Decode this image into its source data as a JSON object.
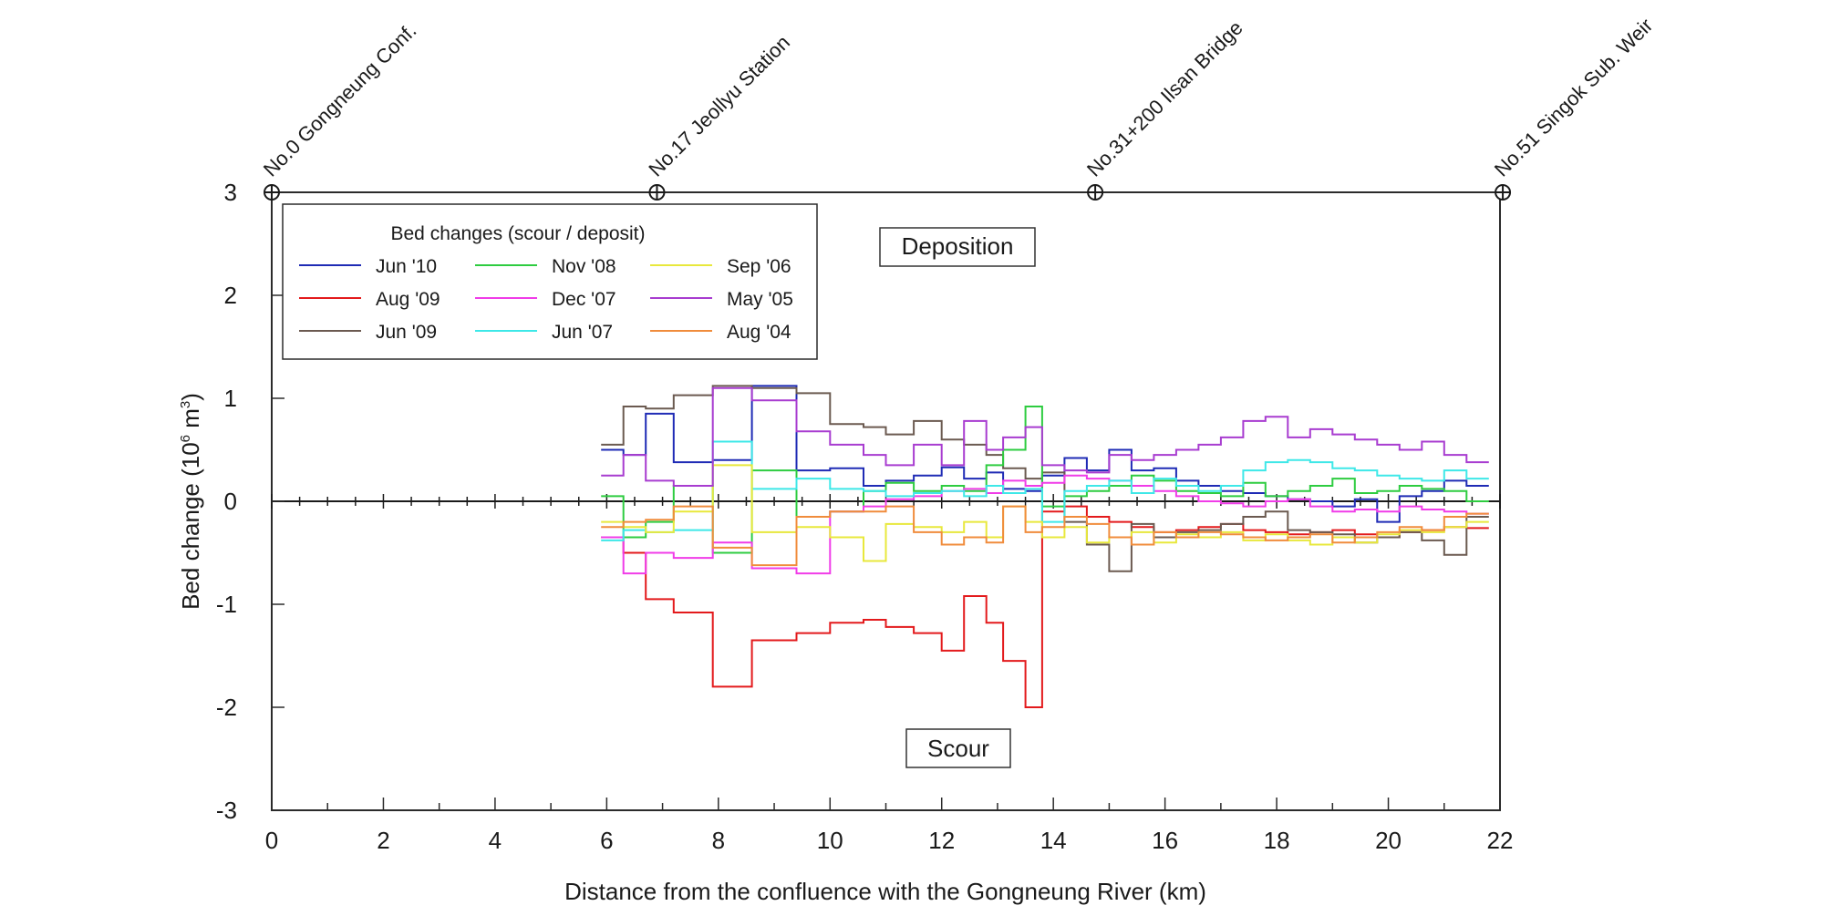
{
  "chart_data": {
    "type": "line",
    "subtype": "step",
    "title": "",
    "xlabel": "Distance from the confluence with the Gongneung River (km)",
    "ylabel_main": "Bed change (10",
    "ylabel_sup": "6",
    "ylabel_unit": " m",
    "ylabel_sup2": "3",
    "ylabel_end": ")",
    "xlim": [
      0,
      22
    ],
    "ylim": [
      -3,
      3
    ],
    "x_ticks": [
      0,
      2,
      4,
      6,
      8,
      10,
      12,
      14,
      16,
      18,
      20,
      22
    ],
    "x_tick_labels": [
      "0",
      "2",
      "4",
      "6",
      "8",
      "10",
      "12",
      "14",
      "16",
      "18",
      "20",
      "22"
    ],
    "y_ticks": [
      3,
      2,
      1,
      0,
      -1,
      -2,
      -3
    ],
    "y_tick_labels": [
      "3",
      "2",
      "1",
      "0",
      "-1",
      "-2",
      "-3"
    ],
    "stations": [
      {
        "x": 0,
        "label": "No.0 Gongneung Conf."
      },
      {
        "x": 6.9,
        "label": "No.17 Jeollyu Station"
      },
      {
        "x": 14.75,
        "label": "No.31+200 Ilsan Bridge"
      },
      {
        "x": 22.05,
        "label": "No.51 Singok Sub. Weir"
      }
    ],
    "annotations": {
      "deposition": "Deposition",
      "scour": "Scour"
    },
    "legend": {
      "title": "Bed changes (scour / deposit)",
      "position": "top-left"
    },
    "x_steps": [
      5.9,
      6.3,
      6.7,
      7.2,
      7.9,
      8.6,
      9.4,
      10.0,
      10.6,
      11.0,
      11.5,
      12.0,
      12.4,
      12.8,
      13.1,
      13.5,
      13.8,
      14.2,
      14.6,
      15.0,
      15.4,
      15.8,
      16.2,
      16.6,
      17.0,
      17.4,
      17.8,
      18.2,
      18.6,
      19.0,
      19.4,
      19.8,
      20.2,
      20.6,
      21.0,
      21.4,
      21.8
    ],
    "series": [
      {
        "name": "Jun '10",
        "color": "#1f2bb5",
        "values": [
          0.5,
          0.45,
          0.85,
          0.38,
          0.4,
          1.12,
          0.3,
          0.32,
          0.15,
          0.2,
          0.25,
          0.33,
          0.22,
          0.28,
          0.12,
          0.1,
          0.25,
          0.42,
          0.3,
          0.5,
          0.3,
          0.32,
          0.2,
          0.15,
          0.1,
          0.08,
          0.05,
          0.02,
          0.0,
          -0.05,
          0.02,
          -0.2,
          0.05,
          0.1,
          0.2,
          0.15
        ]
      },
      {
        "name": "Aug '09",
        "color": "#e31a1c",
        "values": [
          -0.35,
          -0.5,
          -0.95,
          -1.08,
          -1.8,
          -1.35,
          -1.28,
          -1.18,
          -1.15,
          -1.22,
          -1.28,
          -1.45,
          -0.92,
          -1.18,
          -1.55,
          -2.0,
          -0.1,
          -0.05,
          -0.15,
          -0.2,
          -0.25,
          -0.3,
          -0.28,
          -0.25,
          -0.22,
          -0.28,
          -0.3,
          -0.32,
          -0.3,
          -0.28,
          -0.32,
          -0.35,
          -0.3,
          -0.28,
          -0.25,
          -0.26
        ]
      },
      {
        "name": "Jun '09",
        "color": "#6b5a50",
        "values": [
          0.55,
          0.92,
          0.9,
          1.03,
          1.12,
          1.1,
          1.05,
          0.75,
          0.72,
          0.65,
          0.78,
          0.6,
          0.55,
          0.45,
          0.32,
          0.22,
          0.28,
          -0.2,
          -0.42,
          -0.68,
          -0.22,
          -0.35,
          -0.3,
          -0.28,
          -0.22,
          -0.15,
          -0.1,
          -0.28,
          -0.3,
          -0.32,
          -0.4,
          -0.35,
          -0.3,
          -0.38,
          -0.52,
          -0.15
        ]
      },
      {
        "name": "Nov '08",
        "color": "#2ecc40",
        "values": [
          0.05,
          -0.35,
          -0.2,
          0.15,
          -0.5,
          0.3,
          -0.15,
          -0.1,
          0.1,
          0.18,
          0.1,
          0.15,
          0.1,
          0.35,
          0.5,
          0.92,
          -0.05,
          0.05,
          0.1,
          0.15,
          0.25,
          0.2,
          0.1,
          0.08,
          0.05,
          0.18,
          0.05,
          0.1,
          0.15,
          0.22,
          0.08,
          0.1,
          0.15,
          0.12,
          0.1,
          0.0
        ]
      },
      {
        "name": "Dec '07",
        "color": "#f03ce8",
        "values": [
          -0.35,
          -0.7,
          -0.5,
          -0.55,
          -0.4,
          -0.65,
          -0.7,
          -0.1,
          -0.05,
          0.02,
          0.05,
          0.1,
          0.12,
          0.08,
          0.2,
          0.15,
          0.18,
          0.25,
          0.22,
          0.2,
          0.15,
          0.1,
          0.05,
          0.0,
          -0.02,
          -0.05,
          0.0,
          0.02,
          -0.05,
          -0.1,
          -0.08,
          -0.1,
          -0.05,
          -0.08,
          -0.1,
          -0.12
        ]
      },
      {
        "name": "Jun '07",
        "color": "#3ee8e8",
        "values": [
          -0.38,
          -0.28,
          -0.3,
          -0.28,
          0.58,
          0.12,
          0.22,
          0.12,
          0.1,
          0.05,
          0.08,
          0.1,
          0.05,
          0.15,
          0.08,
          0.12,
          -0.2,
          0.1,
          0.15,
          0.2,
          0.08,
          0.22,
          0.15,
          0.1,
          0.15,
          0.3,
          0.38,
          0.4,
          0.38,
          0.32,
          0.3,
          0.25,
          0.22,
          0.2,
          0.3,
          0.22
        ]
      },
      {
        "name": "Sep '06",
        "color": "#e8e83c",
        "values": [
          -0.2,
          -0.25,
          -0.3,
          -0.1,
          0.35,
          -0.3,
          -0.25,
          -0.35,
          -0.58,
          -0.22,
          -0.25,
          -0.3,
          -0.2,
          -0.35,
          -0.05,
          -0.2,
          -0.35,
          -0.25,
          -0.4,
          -0.35,
          -0.3,
          -0.4,
          -0.32,
          -0.35,
          -0.3,
          -0.38,
          -0.32,
          -0.38,
          -0.42,
          -0.35,
          -0.4,
          -0.32,
          -0.28,
          -0.3,
          -0.25,
          -0.2
        ]
      },
      {
        "name": "May '05",
        "color": "#a83cd0",
        "values": [
          0.25,
          0.45,
          0.2,
          0.15,
          1.1,
          0.98,
          0.68,
          0.55,
          0.45,
          0.35,
          0.55,
          0.35,
          0.78,
          0.5,
          0.62,
          0.72,
          0.35,
          0.3,
          0.28,
          0.45,
          0.4,
          0.45,
          0.5,
          0.55,
          0.62,
          0.78,
          0.82,
          0.62,
          0.7,
          0.65,
          0.6,
          0.55,
          0.5,
          0.58,
          0.45,
          0.38
        ]
      },
      {
        "name": "Aug '04",
        "color": "#f08c3c",
        "values": [
          -0.25,
          -0.2,
          -0.18,
          -0.05,
          -0.45,
          -0.62,
          -0.15,
          -0.1,
          -0.1,
          -0.05,
          -0.3,
          -0.42,
          -0.35,
          -0.4,
          -0.05,
          -0.3,
          -0.25,
          -0.15,
          -0.22,
          -0.35,
          -0.42,
          -0.3,
          -0.35,
          -0.3,
          -0.32,
          -0.35,
          -0.38,
          -0.35,
          -0.32,
          -0.4,
          -0.35,
          -0.3,
          -0.25,
          -0.28,
          -0.15,
          -0.12
        ]
      }
    ]
  }
}
